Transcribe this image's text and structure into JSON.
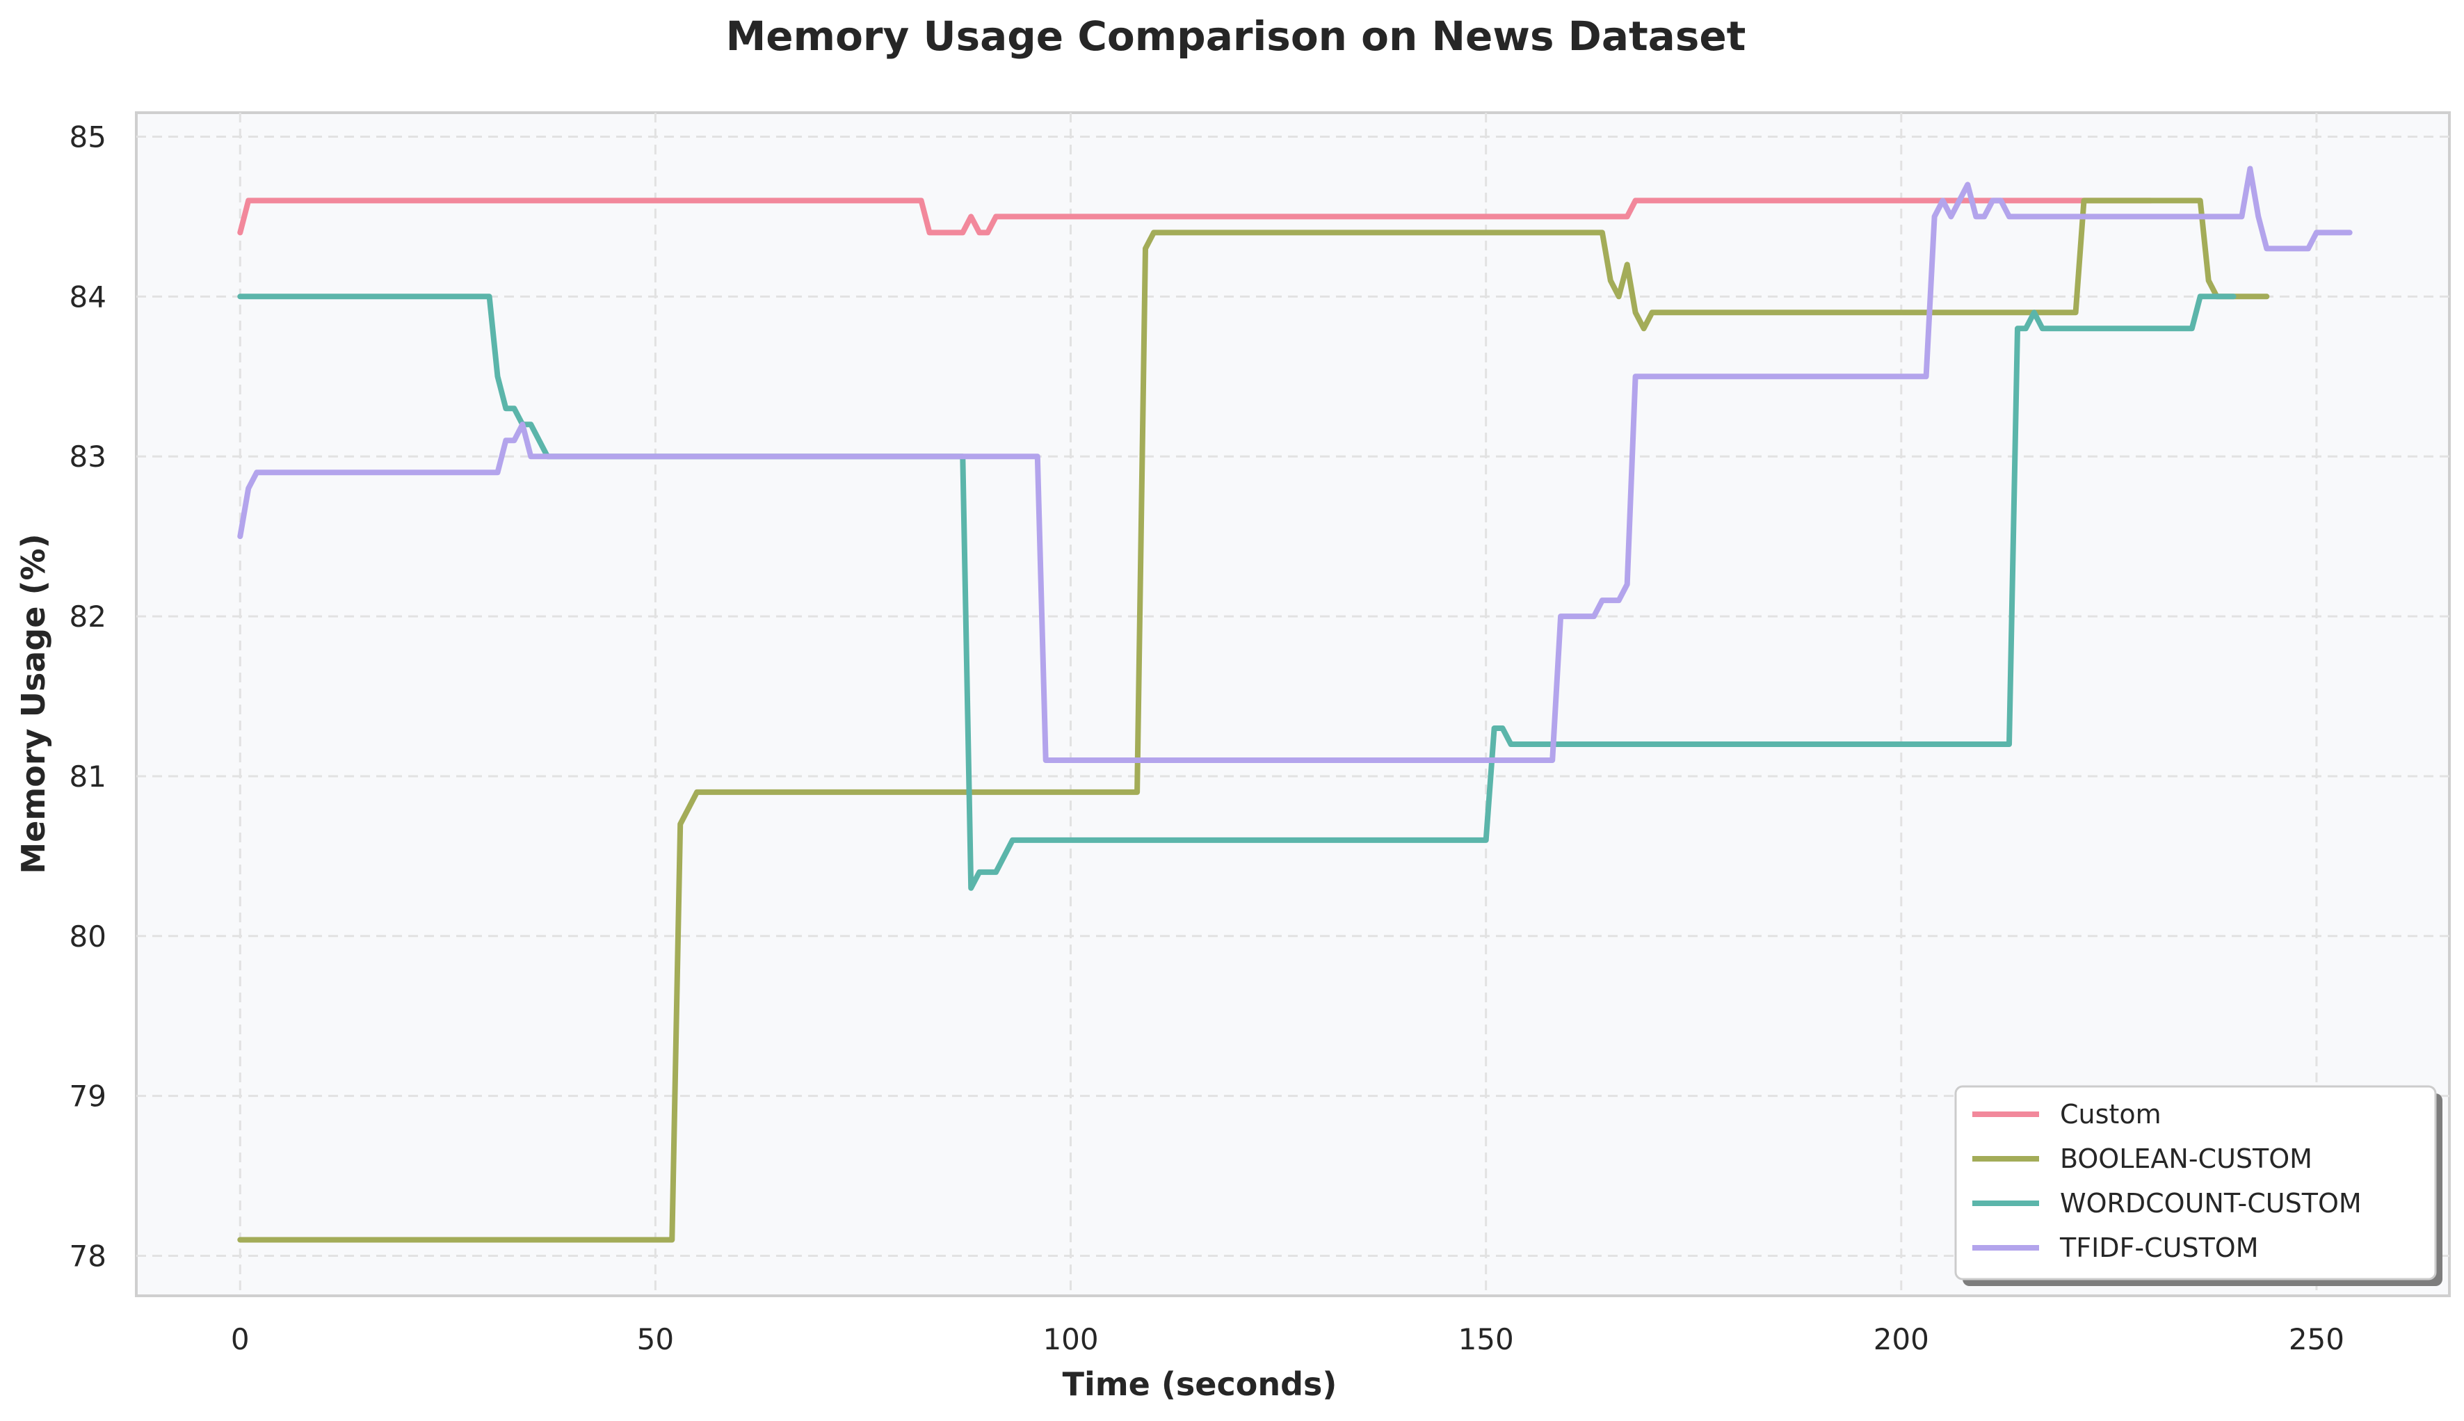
{
  "chart_data": {
    "type": "line",
    "title": "Memory Usage Comparison on News Dataset",
    "xlabel": "Time (seconds)",
    "ylabel": "Memory Usage (%)",
    "xlim": [
      -12.5,
      266
    ],
    "ylim": [
      77.75,
      85.15
    ],
    "xticks": [
      0,
      50,
      100,
      150,
      200,
      250
    ],
    "yticks": [
      78,
      79,
      80,
      81,
      82,
      83,
      84,
      85
    ],
    "xtick_labels": [
      "0",
      "50",
      "100",
      "150",
      "200",
      "250"
    ],
    "ytick_labels": [
      "78",
      "79",
      "80",
      "81",
      "82",
      "83",
      "84",
      "85"
    ],
    "grid": true,
    "legend_position": "lower right",
    "series": [
      {
        "name": "Custom",
        "color": "#f2889b",
        "points": [
          [
            0,
            84.4
          ],
          [
            1,
            84.6
          ],
          [
            82,
            84.6
          ],
          [
            83,
            84.4
          ],
          [
            87,
            84.4
          ],
          [
            88,
            84.5
          ],
          [
            89,
            84.4
          ],
          [
            90,
            84.4
          ],
          [
            91,
            84.5
          ],
          [
            167,
            84.5
          ],
          [
            168,
            84.6
          ],
          [
            230,
            84.6
          ]
        ]
      },
      {
        "name": "BOOLEAN-CUSTOM",
        "color": "#a3ac58",
        "points": [
          [
            0,
            78.1
          ],
          [
            52,
            78.1
          ],
          [
            53,
            80.7
          ],
          [
            55,
            80.9
          ],
          [
            108,
            80.9
          ],
          [
            109,
            84.3
          ],
          [
            110,
            84.4
          ],
          [
            164,
            84.4
          ],
          [
            165,
            84.1
          ],
          [
            166,
            84.0
          ],
          [
            167,
            84.2
          ],
          [
            168,
            83.9
          ],
          [
            169,
            83.8
          ],
          [
            170,
            83.9
          ],
          [
            221,
            83.9
          ],
          [
            222,
            84.6
          ],
          [
            236,
            84.6
          ],
          [
            237,
            84.1
          ],
          [
            238,
            84.0
          ],
          [
            244,
            84.0
          ]
        ]
      },
      {
        "name": "WORDCOUNT-CUSTOM",
        "color": "#5bb5aa",
        "points": [
          [
            0,
            84.0
          ],
          [
            30,
            84.0
          ],
          [
            31,
            83.5
          ],
          [
            32,
            83.3
          ],
          [
            33,
            83.3
          ],
          [
            34,
            83.2
          ],
          [
            35,
            83.2
          ],
          [
            37,
            83.0
          ],
          [
            87,
            83.0
          ],
          [
            88,
            80.3
          ],
          [
            89,
            80.4
          ],
          [
            91,
            80.4
          ],
          [
            93,
            80.6
          ],
          [
            150,
            80.6
          ],
          [
            151,
            81.3
          ],
          [
            152,
            81.3
          ],
          [
            153,
            81.2
          ],
          [
            213,
            81.2
          ],
          [
            214,
            83.8
          ],
          [
            215,
            83.8
          ],
          [
            216,
            83.9
          ],
          [
            217,
            83.8
          ],
          [
            235,
            83.8
          ],
          [
            236,
            84.0
          ],
          [
            240,
            84.0
          ]
        ]
      },
      {
        "name": "TFIDF-CUSTOM",
        "color": "#b3a4ec",
        "points": [
          [
            0,
            82.5
          ],
          [
            1,
            82.8
          ],
          [
            2,
            82.9
          ],
          [
            31,
            82.9
          ],
          [
            32,
            83.1
          ],
          [
            33,
            83.1
          ],
          [
            34,
            83.2
          ],
          [
            35,
            83.0
          ],
          [
            96,
            83.0
          ],
          [
            97,
            81.1
          ],
          [
            158,
            81.1
          ],
          [
            159,
            82.0
          ],
          [
            163,
            82.0
          ],
          [
            164,
            82.1
          ],
          [
            166,
            82.1
          ],
          [
            167,
            82.2
          ],
          [
            168,
            83.5
          ],
          [
            203,
            83.5
          ],
          [
            204,
            84.5
          ],
          [
            205,
            84.6
          ],
          [
            206,
            84.5
          ],
          [
            208,
            84.7
          ],
          [
            209,
            84.5
          ],
          [
            210,
            84.5
          ],
          [
            211,
            84.6
          ],
          [
            212,
            84.6
          ],
          [
            213,
            84.5
          ],
          [
            241,
            84.5
          ],
          [
            242,
            84.8
          ],
          [
            243,
            84.5
          ],
          [
            244,
            84.3
          ],
          [
            249,
            84.3
          ],
          [
            250,
            84.4
          ],
          [
            254,
            84.4
          ]
        ]
      }
    ]
  }
}
